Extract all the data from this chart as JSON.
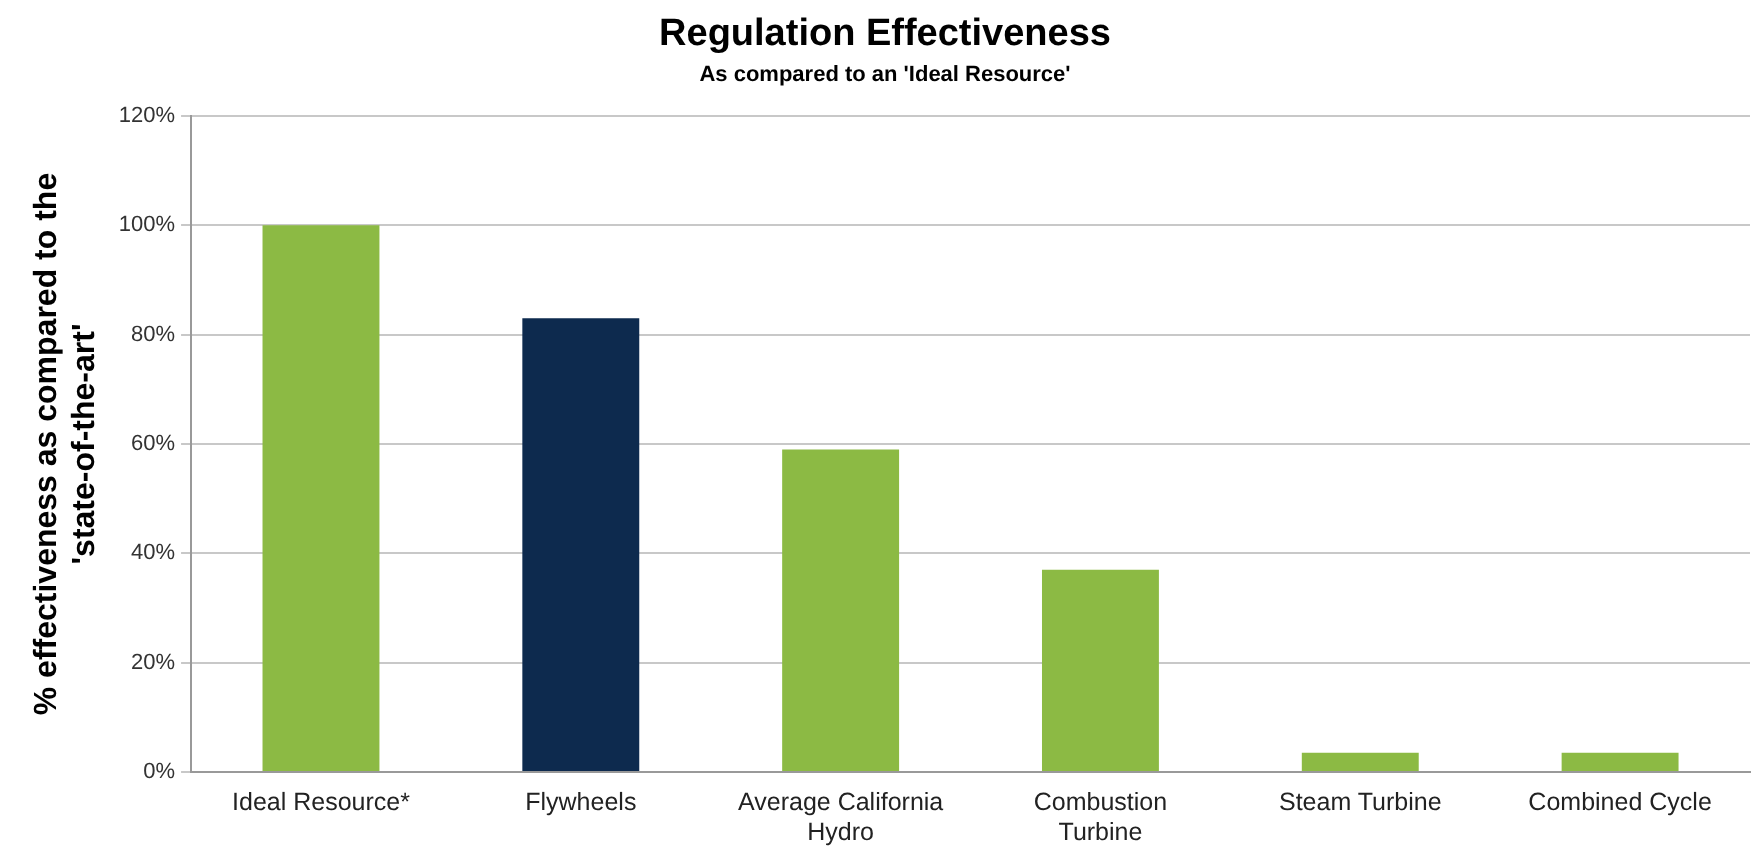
{
  "chart_data": {
    "type": "bar",
    "title": "Regulation Effectiveness",
    "subtitle": "As compared to an 'Ideal Resource'",
    "ylabel": "% effectiveness as compared to the 'state-of-the-art'",
    "categories": [
      "Ideal Resource*",
      "Flywheels",
      "Average California Hydro",
      "Combustion Turbine",
      "Steam Turbine",
      "Combined Cycle"
    ],
    "values": [
      100,
      83,
      59,
      37,
      3.5,
      3.5
    ],
    "colors": [
      "#8cba44",
      "#0d2a4e",
      "#8cba44",
      "#8cba44",
      "#8cba44",
      "#8cba44"
    ],
    "ylim": [
      0,
      120
    ],
    "yticks": [
      {
        "value": 0,
        "label": "0%"
      },
      {
        "value": 20,
        "label": "20%"
      },
      {
        "value": 40,
        "label": "40%"
      },
      {
        "value": 60,
        "label": "60%"
      },
      {
        "value": 80,
        "label": "80%"
      },
      {
        "value": 100,
        "label": "100%"
      },
      {
        "value": 120,
        "label": "120%"
      }
    ],
    "grid": "y",
    "legend": false
  }
}
